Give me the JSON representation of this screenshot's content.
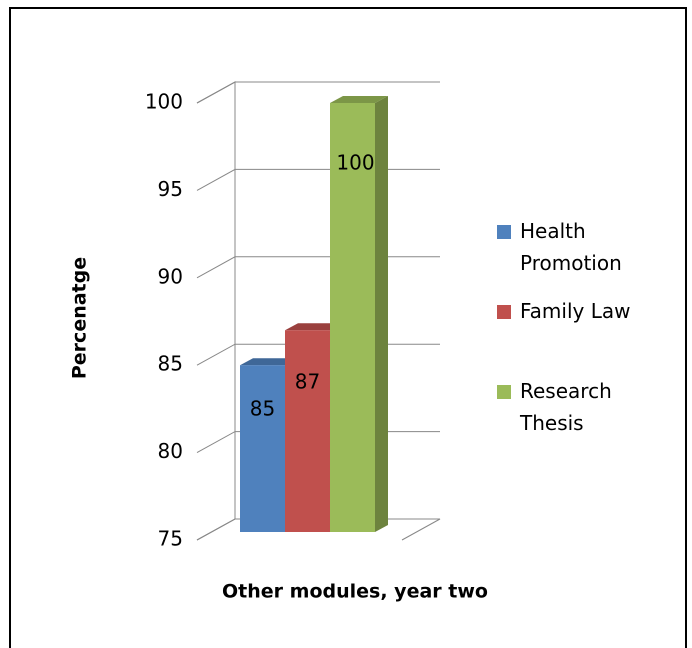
{
  "chart_data": {
    "type": "bar3d",
    "y_label": "Percenatge",
    "x_label": "Other modules, year two",
    "categories": [
      null
    ],
    "series": [
      {
        "name": "Health Promotion",
        "color": "#4f81bd",
        "values": [
          85
        ]
      },
      {
        "name": "Family Law",
        "color": "#c0504d",
        "values": [
          87
        ]
      },
      {
        "name": "Research Thesis",
        "color": "#9bbb59",
        "values": [
          100
        ]
      }
    ],
    "ylim": [
      75,
      100
    ],
    "yticks": [
      75,
      80,
      85,
      90,
      95,
      100
    ],
    "grid": true,
    "legend": "right"
  }
}
